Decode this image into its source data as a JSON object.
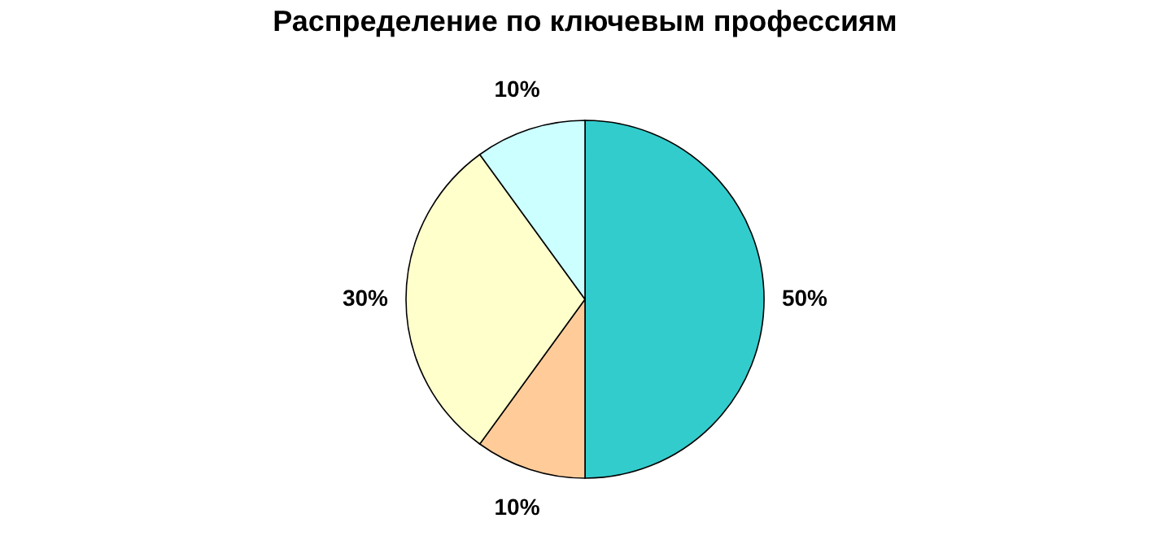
{
  "chart_data": {
    "type": "pie",
    "title": "Распределение по ключевым профессиям",
    "categories": [
      null,
      null,
      null,
      null
    ],
    "values": [
      50,
      10,
      30,
      10
    ],
    "colors": [
      "#33cccc",
      "#ffcc99",
      "#ffffcc",
      "#ccffff"
    ],
    "value_labels": [
      "50%",
      "10%",
      "30%",
      "10%"
    ]
  }
}
